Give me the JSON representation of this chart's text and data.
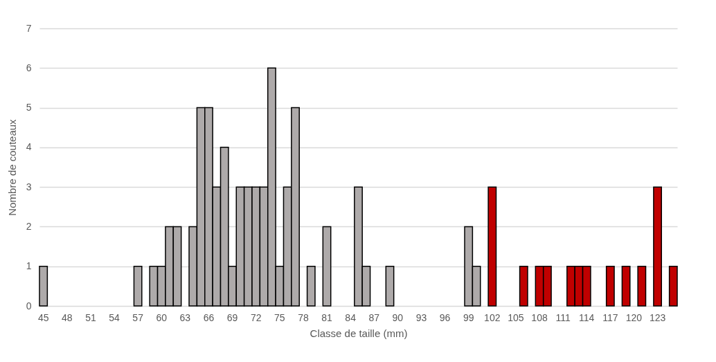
{
  "chart_data": {
    "type": "bar",
    "xlabel": "Classe de taille (mm)",
    "ylabel": "Nombre de couteaux",
    "categories": [
      "45",
      null,
      null,
      "48",
      null,
      null,
      "51",
      null,
      null,
      "54",
      null,
      null,
      "57",
      null,
      null,
      "60",
      null,
      null,
      "63",
      null,
      null,
      "66",
      null,
      null,
      "69",
      null,
      null,
      "72",
      null,
      null,
      "75",
      null,
      null,
      "78",
      null,
      null,
      "81",
      null,
      null,
      "84",
      null,
      null,
      "87",
      null,
      null,
      "90",
      null,
      null,
      "93",
      null,
      null,
      "96",
      null,
      null,
      "99",
      null,
      null,
      "102",
      null,
      null,
      "105",
      null,
      null,
      "108",
      null,
      null,
      "111",
      null,
      null,
      "114",
      null,
      null,
      "117",
      null,
      null,
      "120",
      null,
      null,
      "123",
      null,
      null
    ],
    "values": [
      1,
      0,
      0,
      0,
      0,
      0,
      0,
      0,
      0,
      0,
      0,
      0,
      1,
      0,
      1,
      1,
      2,
      2,
      0,
      2,
      5,
      5,
      3,
      4,
      1,
      3,
      3,
      3,
      3,
      6,
      1,
      3,
      5,
      0,
      1,
      0,
      2,
      0,
      0,
      0,
      3,
      1,
      0,
      0,
      1,
      0,
      0,
      0,
      0,
      0,
      0,
      0,
      0,
      0,
      2,
      1,
      0,
      3,
      0,
      0,
      0,
      1,
      0,
      1,
      1,
      0,
      0,
      1,
      1,
      1,
      0,
      0,
      1,
      0,
      1,
      0,
      1,
      0,
      3,
      0,
      1
    ],
    "colors": [
      "#aeaaaa",
      "#aeaaaa",
      "#aeaaaa",
      "#aeaaaa",
      "#aeaaaa",
      "#aeaaaa",
      "#aeaaaa",
      "#aeaaaa",
      "#aeaaaa",
      "#aeaaaa",
      "#aeaaaa",
      "#aeaaaa",
      "#aeaaaa",
      "#aeaaaa",
      "#aeaaaa",
      "#aeaaaa",
      "#aeaaaa",
      "#aeaaaa",
      "#aeaaaa",
      "#aeaaaa",
      "#aeaaaa",
      "#aeaaaa",
      "#aeaaaa",
      "#aeaaaa",
      "#aeaaaa",
      "#aeaaaa",
      "#aeaaaa",
      "#aeaaaa",
      "#aeaaaa",
      "#aeaaaa",
      "#aeaaaa",
      "#aeaaaa",
      "#aeaaaa",
      "#aeaaaa",
      "#aeaaaa",
      "#aeaaaa",
      "#aeaaaa",
      "#aeaaaa",
      "#aeaaaa",
      "#aeaaaa",
      "#aeaaaa",
      "#aeaaaa",
      "#aeaaaa",
      "#aeaaaa",
      "#aeaaaa",
      "#aeaaaa",
      "#aeaaaa",
      "#aeaaaa",
      "#aeaaaa",
      "#aeaaaa",
      "#aeaaaa",
      "#aeaaaa",
      "#aeaaaa",
      "#aeaaaa",
      "#aeaaaa",
      "#aeaaaa",
      "#aeaaaa",
      "#c00000",
      "#c00000",
      "#c00000",
      "#c00000",
      "#c00000",
      "#c00000",
      "#c00000",
      "#c00000",
      "#c00000",
      "#c00000",
      "#c00000",
      "#c00000",
      "#c00000",
      "#c00000",
      "#c00000",
      "#c00000",
      "#c00000",
      "#c00000",
      "#c00000",
      "#c00000",
      "#c00000",
      "#c00000",
      "#c00000",
      "#c00000"
    ],
    "ylim": [
      0,
      7
    ],
    "yticks": [
      0,
      1,
      2,
      3,
      4,
      5,
      6,
      7
    ],
    "grid": "y"
  }
}
